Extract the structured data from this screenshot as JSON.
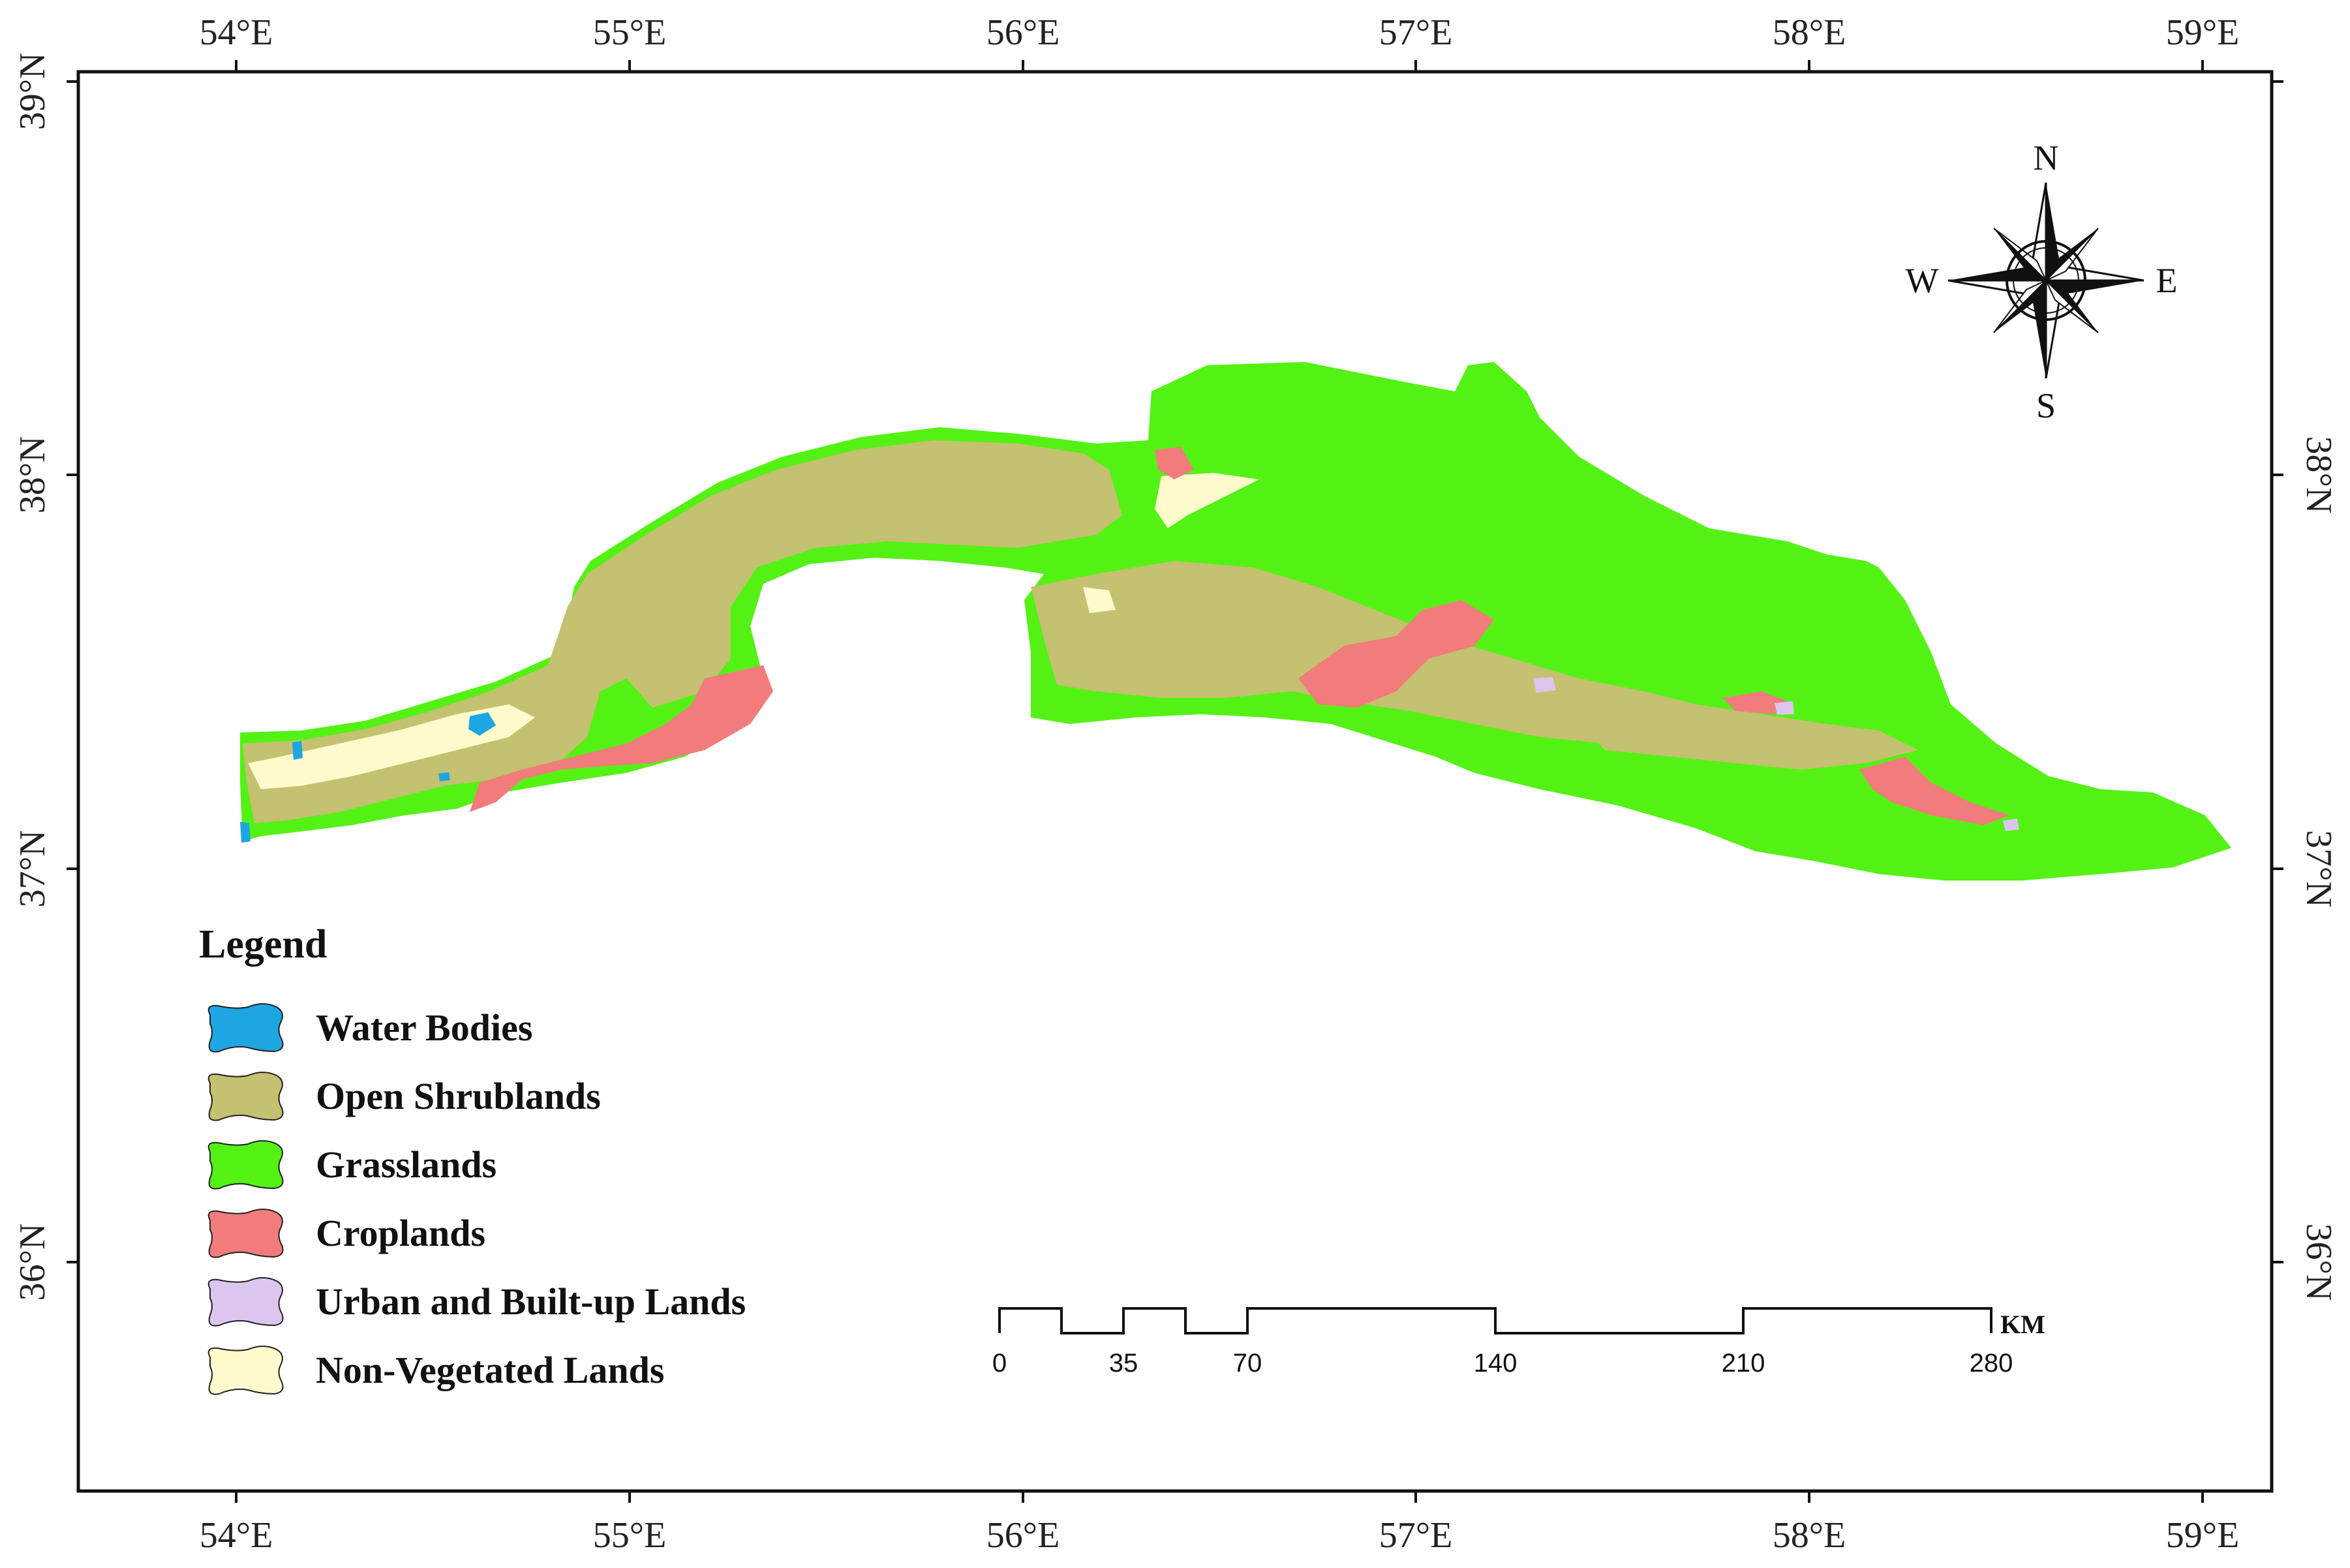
{
  "graticule": {
    "longitudes": [
      "54°E",
      "55°E",
      "56°E",
      "57°E",
      "58°E",
      "59°E"
    ],
    "latitudes": [
      "39°N",
      "38°N",
      "37°N",
      "36°N"
    ]
  },
  "legend": {
    "title": "Legend",
    "items": [
      {
        "label": "Water Bodies",
        "color": "#1ea6e3"
      },
      {
        "label": "Open Shrublands",
        "color": "#c4c170"
      },
      {
        "label": "Grasslands",
        "color": "#53f214"
      },
      {
        "label": "Croplands",
        "color": "#f27c7c"
      },
      {
        "label": "Urban and Built-up Lands",
        "color": "#dcc6f0"
      },
      {
        "label": "Non-Vegetated Lands",
        "color": "#fffbcc"
      }
    ]
  },
  "north_arrow": {
    "n": "N",
    "s": "S",
    "e": "E",
    "w": "W"
  },
  "scale_bar": {
    "ticks": [
      "0",
      "35",
      "70",
      "140",
      "210",
      "280"
    ],
    "unit": "KM"
  }
}
